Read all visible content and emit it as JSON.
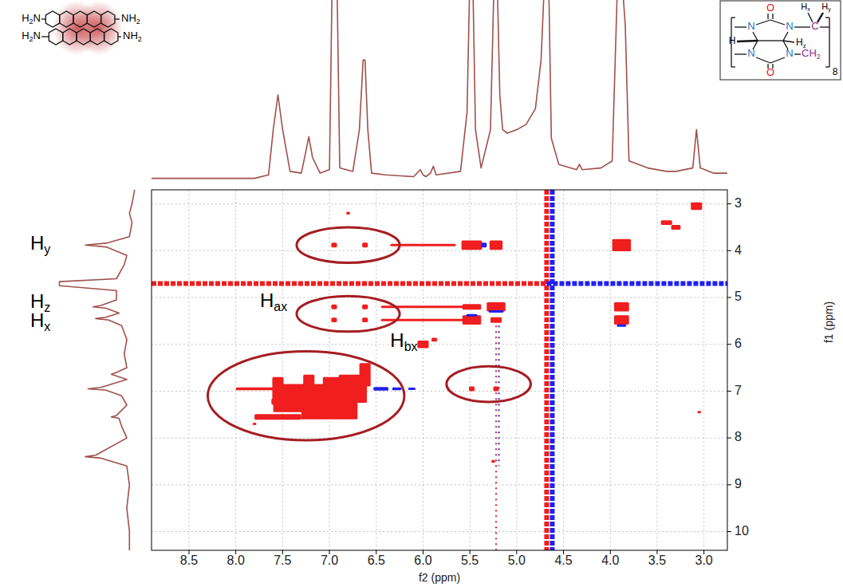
{
  "chart_data": {
    "type": "nmr_2d",
    "xlabel": "f2 (ppm)",
    "ylabel": "f1 (ppm)",
    "xlim": [
      8.9,
      2.75
    ],
    "ylim": [
      2.7,
      10.4
    ],
    "xticks": [
      8.5,
      {
        "value": 8,
        "label": "8.0"
      },
      7.5,
      {
        "value": 7,
        "label": "7.0"
      },
      6.5,
      {
        "value": 6,
        "label": "6.0"
      },
      5.5,
      {
        "value": 5,
        "label": "5.0"
      },
      4.5,
      {
        "value": 4,
        "label": "4.0"
      },
      3.5,
      {
        "value": 3,
        "label": "3.0"
      }
    ],
    "yticks": [
      3,
      4,
      5,
      6,
      7,
      8,
      9,
      10
    ],
    "grid": true,
    "series": [
      {
        "type": "peaks",
        "color": "#f01e1e",
        "x": [
          6.95,
          6.62,
          5.48,
          5.22,
          3.88,
          6.0,
          6.95,
          6.62,
          5.48,
          5.22,
          3.88,
          6.0,
          6.95,
          6.62,
          5.48,
          5.22,
          3.88,
          6.0,
          6.0,
          5.88,
          5.48,
          5.22,
          7.4,
          7.3,
          7.0,
          6.75,
          7.55,
          7.22,
          6.62,
          6.95,
          7.55,
          7.22,
          3.4,
          3.3,
          3.08,
          6.8,
          5.25,
          3.05,
          7.8
        ],
        "y": [
          3.88,
          3.88,
          3.88,
          3.88,
          3.88,
          3.88,
          5.2,
          5.2,
          5.2,
          5.2,
          5.2,
          5.2,
          5.48,
          5.48,
          5.48,
          5.48,
          5.48,
          5.48,
          6.0,
          5.9,
          6.95,
          6.95,
          6.95,
          7.15,
          7.3,
          6.95,
          7.55,
          7.22,
          6.65,
          6.95,
          7.0,
          7.1,
          3.4,
          3.5,
          3.05,
          3.2,
          8.5,
          7.45,
          7.7
        ],
        "x_width": [
          0.06,
          0.06,
          0.22,
          0.14,
          0.2,
          0.7,
          0.06,
          0.06,
          0.2,
          0.2,
          0.16,
          0.9,
          0.06,
          0.06,
          0.2,
          0.12,
          0.16,
          0.9,
          0.12,
          0.06,
          0.06,
          0.06,
          1.2,
          0.6,
          0.6,
          0.3,
          0.5,
          0.8,
          0.12,
          0.24,
          0.12,
          0.12,
          0.12,
          0.1,
          0.12,
          0.04,
          0.04,
          0.04,
          0.04
        ],
        "y_width": [
          0.1,
          0.1,
          0.2,
          0.2,
          0.26,
          0.04,
          0.1,
          0.1,
          0.12,
          0.2,
          0.2,
          0.04,
          0.1,
          0.1,
          0.2,
          0.12,
          0.2,
          0.04,
          0.16,
          0.08,
          0.1,
          0.1,
          0.06,
          0.6,
          0.6,
          0.6,
          0.12,
          0.12,
          0.5,
          0.5,
          0.6,
          0.9,
          0.1,
          0.1,
          0.16,
          0.06,
          0.06,
          0.04,
          0.04
        ]
      },
      {
        "type": "peaks",
        "color": "#2020f0",
        "x": [
          5.22,
          5.48,
          6.45,
          6.28,
          6.12,
          3.88,
          5.35
        ],
        "y": [
          5.3,
          5.38,
          6.95,
          6.95,
          6.95,
          5.6,
          3.88
        ],
        "x_width": [
          0.16,
          0.12,
          0.16,
          0.1,
          0.08,
          0.1,
          0.06
        ],
        "y_width": [
          0.05,
          0.04,
          0.08,
          0.06,
          0.05,
          0.05,
          0.1
        ]
      }
    ],
    "ridges": [
      {
        "orientation": "vertical",
        "at": 4.68,
        "from": 2.7,
        "to": 10.4,
        "color": "#f01e1e",
        "line_style": "solid"
      },
      {
        "orientation": "vertical",
        "at": 4.62,
        "from": 2.7,
        "to": 10.4,
        "color": "#2020f0",
        "line_style": "solid"
      },
      {
        "orientation": "horizontal",
        "at": 4.7,
        "from": 8.9,
        "to": 4.68,
        "color": "#f01e1e",
        "line_style": "solid"
      },
      {
        "orientation": "horizontal",
        "at": 4.7,
        "from": 4.68,
        "to": 2.75,
        "color": "#2020f0",
        "line_style": "solid"
      },
      {
        "orientation": "vertical",
        "at": 5.22,
        "from": 5.6,
        "to": 10.4,
        "color": "#f01e1e",
        "line_style": "dotted"
      },
      {
        "orientation": "vertical",
        "at": 5.19,
        "from": 5.6,
        "to": 8.6,
        "color": "#2020f0",
        "line_style": "dotted"
      }
    ],
    "highlights": [
      {
        "x": 6.8,
        "y": 3.88,
        "x_radius": 0.55,
        "y_radius": 0.38,
        "color": "#a51d22"
      },
      {
        "x": 6.8,
        "y": 5.35,
        "x_radius": 0.55,
        "y_radius": 0.38,
        "color": "#a51d22"
      },
      {
        "x": 5.3,
        "y": 6.85,
        "x_radius": 0.45,
        "y_radius": 0.38,
        "color": "#a51d22"
      },
      {
        "x": 7.25,
        "y": 7.1,
        "x_radius": 1.05,
        "y_radius": 0.95,
        "color": "#a51d22"
      }
    ],
    "annotations": [
      {
        "parts": [
          {
            "t": "H"
          },
          {
            "t": "ax",
            "sub": true
          }
        ],
        "x": 7.45,
        "y": 5.1
      },
      {
        "parts": [
          {
            "t": "H"
          },
          {
            "t": "bx",
            "sub": true
          }
        ],
        "x": 6.35,
        "y": 5.95
      }
    ],
    "projection_top": {
      "color": "#a0504c",
      "ylim": [
        0,
        1
      ],
      "x": [
        8.9,
        7.8,
        7.65,
        7.6,
        7.55,
        7.5,
        7.42,
        7.3,
        7.25,
        7.22,
        7.18,
        7.1,
        7.0,
        6.97,
        6.95,
        6.92,
        6.89,
        6.75,
        6.68,
        6.64,
        6.62,
        6.59,
        6.55,
        6.4,
        6.1,
        6.03,
        6.0,
        5.97,
        5.92,
        5.89,
        5.86,
        5.6,
        5.53,
        5.5,
        5.47,
        5.44,
        5.38,
        5.28,
        5.24,
        5.21,
        5.18,
        5.15,
        5.1,
        5.0,
        4.9,
        4.8,
        4.74,
        4.7,
        4.66,
        4.63,
        4.55,
        4.36,
        4.33,
        4.3,
        4.1,
        3.98,
        3.92,
        3.88,
        3.84,
        3.8,
        3.6,
        3.4,
        3.3,
        3.12,
        3.08,
        3.04,
        2.9,
        2.75
      ],
      "values": [
        0.02,
        0.02,
        0.04,
        0.3,
        0.5,
        0.3,
        0.06,
        0.05,
        0.18,
        0.26,
        0.14,
        0.05,
        0.07,
        1.2,
        1.2,
        1.2,
        0.08,
        0.06,
        0.3,
        0.7,
        0.7,
        0.3,
        0.05,
        0.04,
        0.03,
        0.07,
        0.04,
        0.03,
        0.05,
        0.09,
        0.04,
        0.06,
        0.4,
        1.2,
        1.2,
        0.3,
        0.08,
        0.3,
        1.2,
        1.2,
        0.5,
        0.3,
        0.28,
        0.3,
        0.33,
        0.42,
        0.7,
        1.2,
        1.2,
        0.25,
        0.1,
        0.07,
        0.1,
        0.07,
        0.08,
        0.12,
        1.2,
        1.2,
        0.9,
        0.12,
        0.08,
        0.06,
        0.06,
        0.08,
        0.3,
        0.08,
        0.05,
        0.05
      ]
    },
    "projection_left": {
      "color": "#a0504c",
      "xlim": [
        0,
        1
      ],
      "y": [
        2.7,
        3.0,
        3.2,
        3.4,
        3.7,
        3.84,
        3.88,
        3.92,
        4.1,
        4.3,
        4.6,
        4.66,
        4.7,
        4.75,
        4.85,
        5.05,
        5.17,
        5.2,
        5.23,
        5.33,
        5.42,
        5.45,
        5.48,
        5.6,
        5.9,
        6.2,
        6.5,
        6.6,
        6.64,
        6.75,
        6.92,
        6.95,
        6.98,
        7.1,
        7.3,
        7.52,
        7.55,
        7.58,
        7.75,
        8.0,
        8.37,
        8.4,
        8.43,
        8.6,
        9.0,
        9.5,
        10.0,
        10.4
      ],
      "values": [
        0.05,
        0.1,
        0.15,
        0.1,
        0.15,
        0.6,
        1.0,
        0.6,
        0.2,
        0.25,
        0.4,
        1.5,
        1.5,
        1.5,
        0.4,
        0.4,
        0.7,
        0.85,
        0.6,
        0.35,
        0.6,
        0.8,
        0.55,
        0.3,
        0.2,
        0.25,
        0.2,
        0.4,
        0.5,
        0.2,
        0.7,
        0.95,
        0.6,
        0.3,
        0.2,
        0.4,
        0.5,
        0.35,
        0.3,
        0.2,
        0.8,
        1.0,
        0.7,
        0.2,
        0.15,
        0.2,
        0.15,
        0.15
      ]
    },
    "projection_labels": [
      {
        "parts": [
          {
            "t": "H"
          },
          {
            "t": "y",
            "sub": true
          }
        ],
        "y": 3.88
      },
      {
        "parts": [
          {
            "t": "H"
          },
          {
            "t": "z",
            "sub": true
          }
        ],
        "y": 5.2
      },
      {
        "parts": [
          {
            "t": "H"
          },
          {
            "t": "x",
            "sub": true
          }
        ],
        "y": 5.45
      }
    ]
  },
  "structures": {
    "left": {
      "labels": [
        {
          "parts": [
            {
              "t": "H"
            },
            {
              "t": "2",
              "sub": true
            },
            {
              "t": "N"
            }
          ],
          "color": "#000000"
        },
        {
          "parts": [
            {
              "t": "H"
            },
            {
              "t": "2",
              "sub": true
            },
            {
              "t": "N"
            }
          ],
          "color": "#000000"
        },
        {
          "parts": [
            {
              "t": "NH"
            },
            {
              "t": "2",
              "sub": true
            }
          ],
          "color": "#000000"
        },
        {
          "parts": [
            {
              "t": "NH"
            },
            {
              "t": "2",
              "sub": true
            }
          ],
          "color": "#000000"
        }
      ]
    },
    "right": {
      "labels": [
        {
          "parts": [
            {
              "t": "O"
            }
          ],
          "color": "#e8141c"
        },
        {
          "parts": [
            {
              "t": "O"
            }
          ],
          "color": "#e8141c"
        },
        {
          "parts": [
            {
              "t": "N"
            }
          ],
          "color": "#1c75bc"
        },
        {
          "parts": [
            {
              "t": "N"
            }
          ],
          "color": "#1c75bc"
        },
        {
          "parts": [
            {
              "t": "N"
            }
          ],
          "color": "#1c75bc"
        },
        {
          "parts": [
            {
              "t": "N"
            }
          ],
          "color": "#1c75bc"
        },
        {
          "parts": [
            {
              "t": "H"
            }
          ],
          "color": "#000000"
        },
        {
          "parts": [
            {
              "t": "H"
            },
            {
              "t": "z",
              "sub": true
            }
          ],
          "color": "#000000"
        },
        {
          "parts": [
            {
              "t": "H"
            },
            {
              "t": "x",
              "sub": true
            }
          ],
          "color": "#000000"
        },
        {
          "parts": [
            {
              "t": "H"
            },
            {
              "t": "y",
              "sub": true
            }
          ],
          "color": "#000000"
        },
        {
          "parts": [
            {
              "t": "C"
            }
          ],
          "color": "#92278f"
        },
        {
          "parts": [
            {
              "t": "CH"
            },
            {
              "t": "2",
              "sub": true
            }
          ],
          "color": "#92278f"
        },
        {
          "parts": [
            {
              "t": "8"
            }
          ],
          "color": "#000000"
        }
      ]
    }
  }
}
